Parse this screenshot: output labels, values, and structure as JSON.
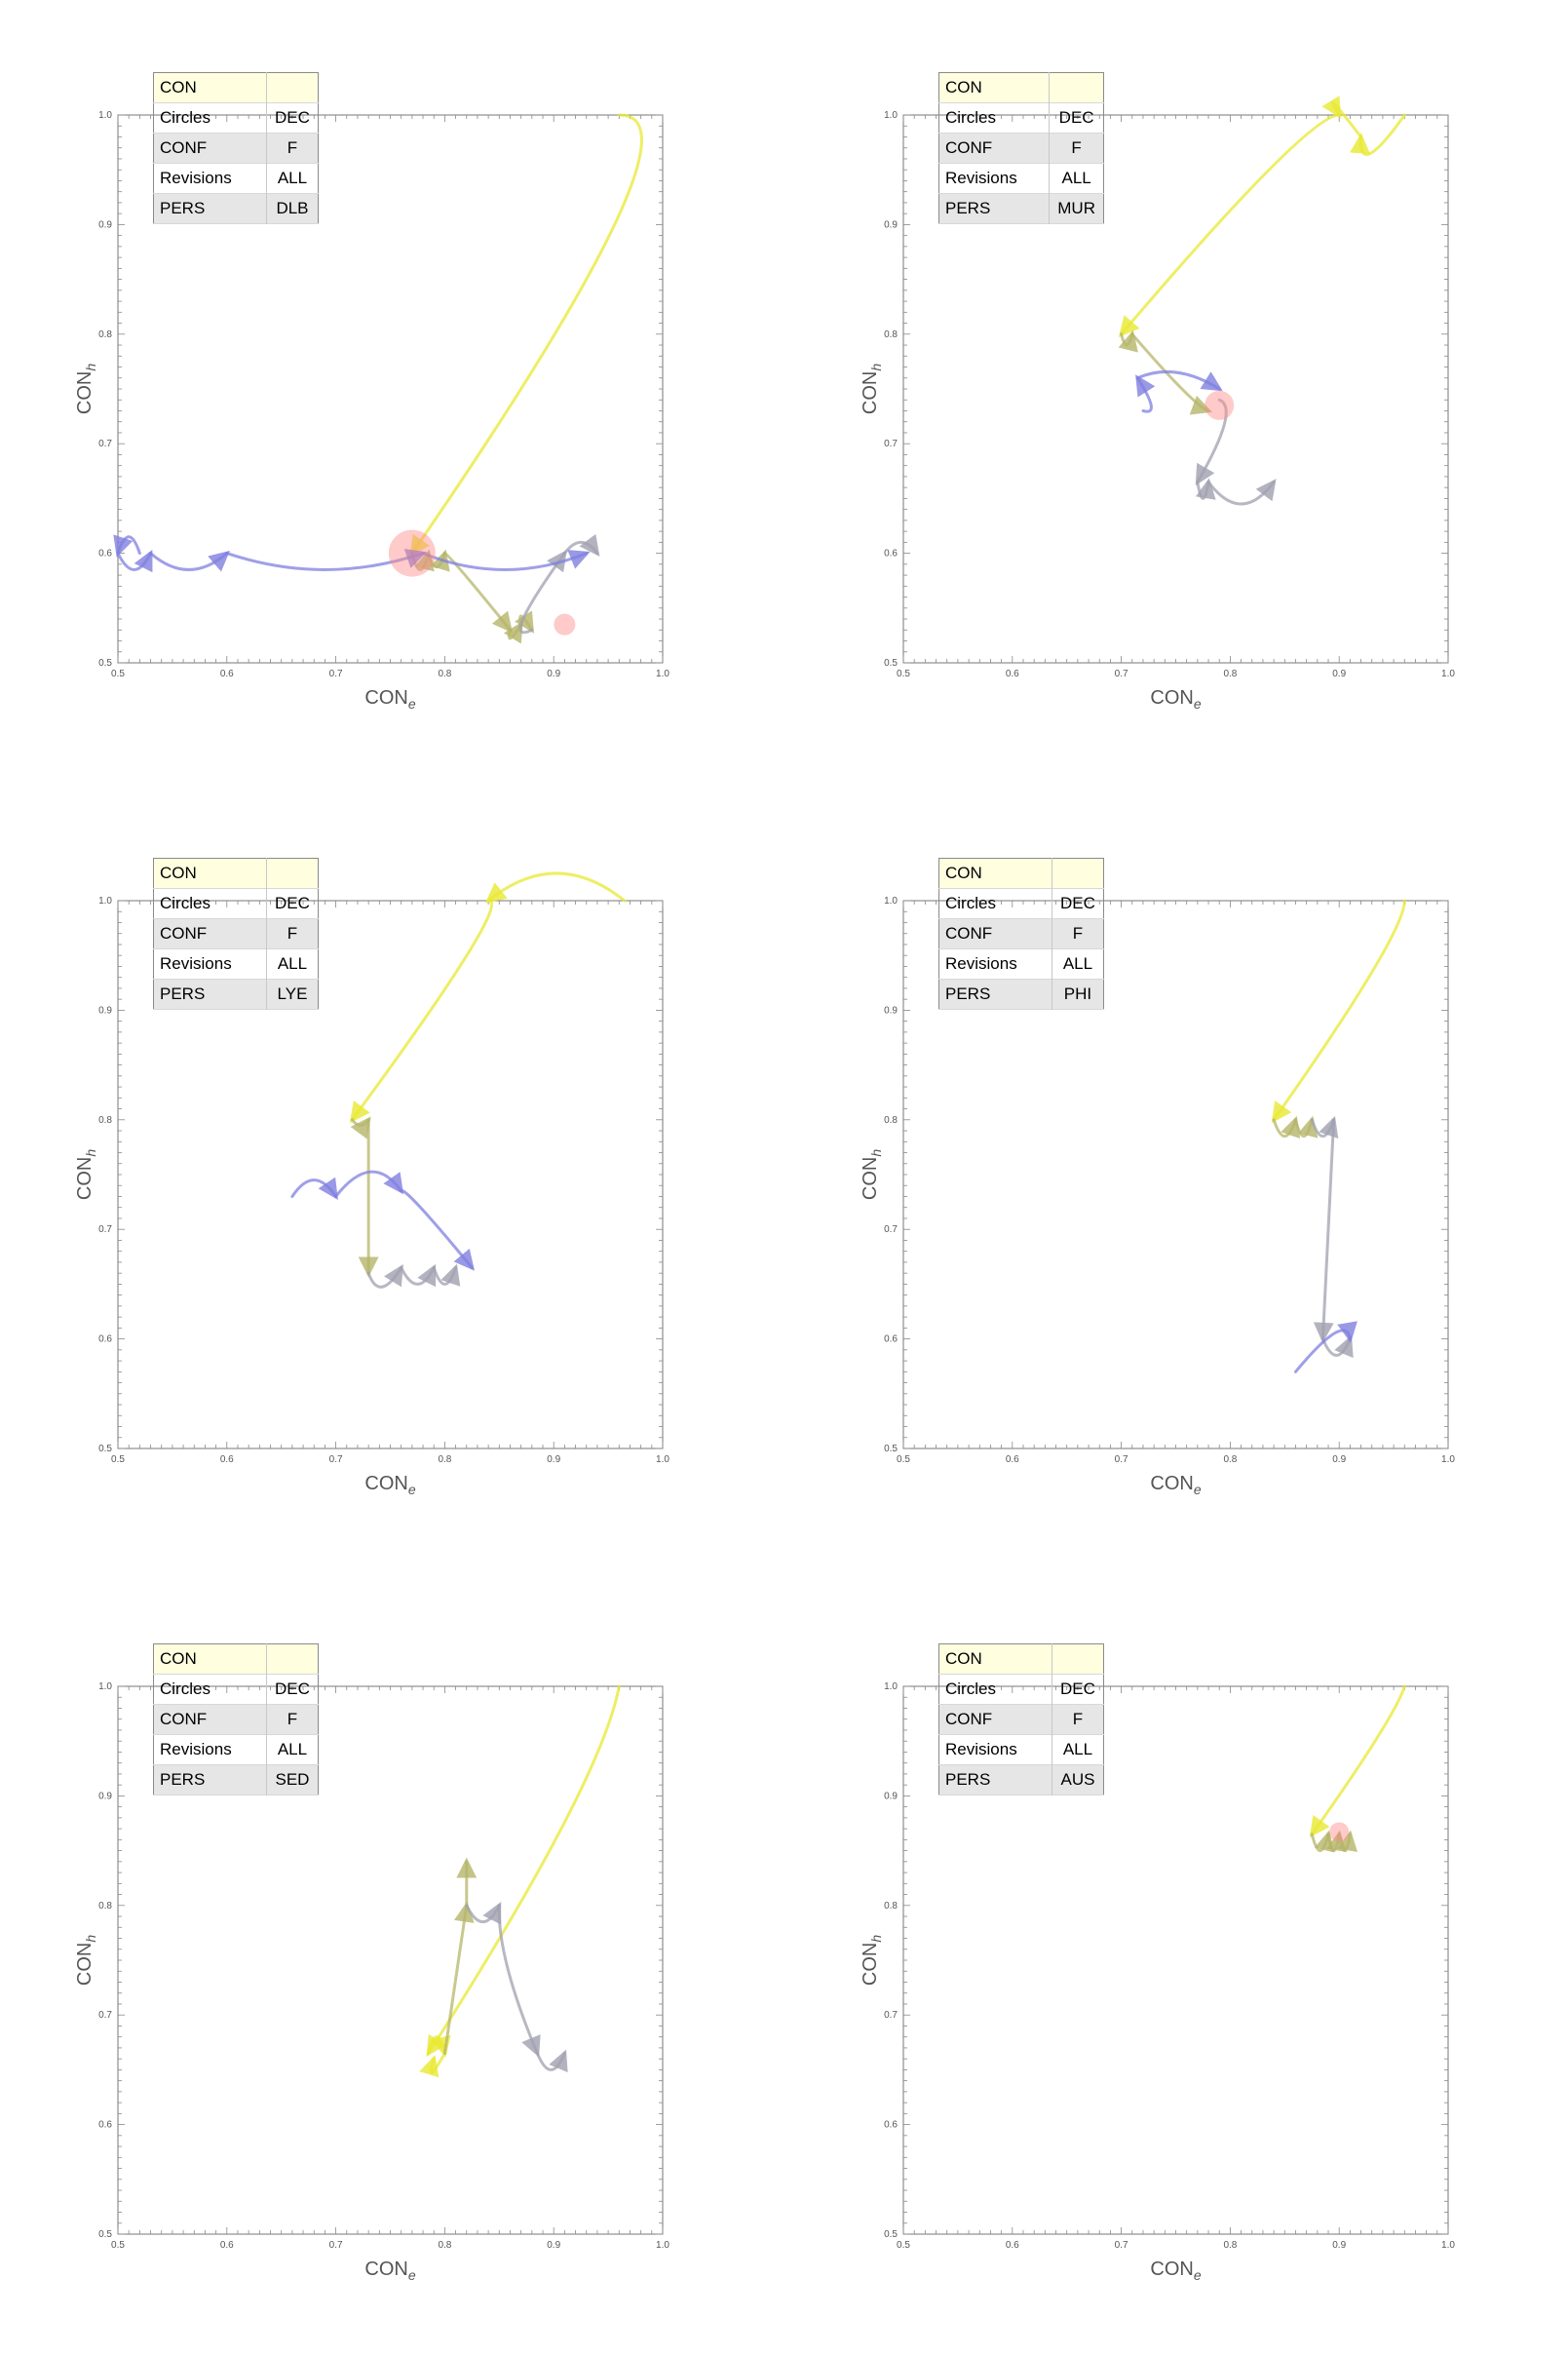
{
  "chart_data": [
    {
      "type": "line",
      "xlabel": "CON",
      "xlabel_sub": "e",
      "ylabel": "CON",
      "ylabel_sub": "h",
      "xlim": [
        0.5,
        1.0
      ],
      "ylim": [
        0.5,
        1.0
      ],
      "xticks": [
        "0.5",
        "0.6",
        "0.7",
        "0.8",
        "0.9",
        "1.0"
      ],
      "yticks": [
        "0.5",
        "0.6",
        "0.7",
        "0.8",
        "0.9",
        "1.0"
      ],
      "grid": false,
      "legend": {
        "title": "CON",
        "rows": [
          [
            "Circles",
            "DEC"
          ],
          [
            "CONF",
            "F"
          ],
          [
            "Revisions",
            "ALL"
          ],
          [
            "PERS",
            "DLB"
          ]
        ]
      },
      "series": [
        {
          "color": "#e8e832",
          "points": [
            [
              0.96,
              1.0
            ],
            [
              0.77,
              0.6
            ]
          ],
          "arcs": [
            0.2
          ]
        },
        {
          "color": "#b5b56a",
          "points": [
            [
              0.77,
              0.6
            ],
            [
              0.785,
              0.6
            ],
            [
              0.8,
              0.6
            ],
            [
              0.86,
              0.53
            ],
            [
              0.87,
              0.535
            ],
            [
              0.88,
              0.53
            ]
          ],
          "arcs": [
            -0.03,
            -0.025,
            0.035,
            -0.02,
            0.02
          ]
        },
        {
          "color": "#a0a0b0",
          "points": [
            [
              0.88,
              0.53
            ],
            [
              0.91,
              0.6
            ],
            [
              0.94,
              0.6
            ]
          ],
          "arcs": [
            -0.05,
            0.02
          ]
        },
        {
          "color": "#7f7fe0",
          "points": [
            [
              0.52,
              0.6
            ],
            [
              0.5,
              0.6
            ],
            [
              0.53,
              0.6
            ],
            [
              0.6,
              0.6
            ],
            [
              0.78,
              0.6
            ],
            [
              0.93,
              0.6
            ]
          ],
          "arcs": [
            0.03,
            -0.03,
            -0.03,
            -0.03,
            -0.03
          ]
        }
      ],
      "circles": [
        {
          "x": 0.77,
          "y": 0.6,
          "r": 24
        },
        {
          "x": 0.91,
          "y": 0.535,
          "r": 11
        }
      ]
    },
    {
      "type": "line",
      "xlabel": "CON",
      "xlabel_sub": "e",
      "ylabel": "CON",
      "ylabel_sub": "h",
      "xlim": [
        0.5,
        1.0
      ],
      "ylim": [
        0.5,
        1.0
      ],
      "xticks": [
        "0.5",
        "0.6",
        "0.7",
        "0.8",
        "0.9",
        "1.0"
      ],
      "yticks": [
        "0.5",
        "0.6",
        "0.7",
        "0.8",
        "0.9",
        "1.0"
      ],
      "grid": false,
      "legend": {
        "title": "CON",
        "rows": [
          [
            "Circles",
            "DEC"
          ],
          [
            "CONF",
            "F"
          ],
          [
            "Revisions",
            "ALL"
          ],
          [
            "PERS",
            "MUR"
          ]
        ]
      },
      "series": [
        {
          "color": "#e8e832",
          "points": [
            [
              0.96,
              1.0
            ],
            [
              0.92,
              0.98
            ],
            [
              0.9,
              1.0
            ],
            [
              0.7,
              0.8
            ]
          ],
          "arcs": [
            -0.05,
            0.04,
            0.1
          ]
        },
        {
          "color": "#b5b56a",
          "points": [
            [
              0.7,
              0.8
            ],
            [
              0.71,
              0.8
            ],
            [
              0.78,
              0.73
            ]
          ],
          "arcs": [
            -0.02,
            -0.03
          ]
        },
        {
          "color": "#a0a0b0",
          "points": [
            [
              0.79,
              0.74
            ],
            [
              0.77,
              0.665
            ],
            [
              0.78,
              0.665
            ],
            [
              0.84,
              0.665
            ]
          ],
          "arcs": [
            0.03,
            -0.03,
            -0.04
          ]
        },
        {
          "color": "#7f7fe0",
          "points": [
            [
              0.72,
              0.73
            ],
            [
              0.715,
              0.76
            ],
            [
              0.79,
              0.75
            ]
          ],
          "arcs": [
            -0.02,
            0.02
          ]
        }
      ],
      "circles": [
        {
          "x": 0.79,
          "y": 0.735,
          "r": 15
        }
      ]
    },
    {
      "type": "line",
      "xlabel": "CON",
      "xlabel_sub": "e",
      "ylabel": "CON",
      "ylabel_sub": "h",
      "xlim": [
        0.5,
        1.0
      ],
      "ylim": [
        0.5,
        1.0
      ],
      "xticks": [
        "0.5",
        "0.6",
        "0.7",
        "0.8",
        "0.9",
        "1.0"
      ],
      "yticks": [
        "0.5",
        "0.6",
        "0.7",
        "0.8",
        "0.9",
        "1.0"
      ],
      "grid": false,
      "legend": {
        "title": "CON",
        "rows": [
          [
            "Circles",
            "DEC"
          ],
          [
            "CONF",
            "F"
          ],
          [
            "Revisions",
            "ALL"
          ],
          [
            "PERS",
            "LYE"
          ]
        ]
      },
      "series": [
        {
          "color": "#e8e832",
          "points": [
            [
              0.965,
              1.0
            ],
            [
              0.84,
              1.0
            ],
            [
              0.715,
              0.8
            ]
          ],
          "arcs": [
            0.05,
            0.1
          ]
        },
        {
          "color": "#b5b56a",
          "points": [
            [
              0.715,
              0.8
            ],
            [
              0.73,
              0.8
            ],
            [
              0.73,
              0.66
            ]
          ],
          "arcs": [
            -0.01,
            0.0
          ]
        },
        {
          "color": "#a0a0b0",
          "points": [
            [
              0.73,
              0.66
            ],
            [
              0.76,
              0.665
            ],
            [
              0.79,
              0.665
            ],
            [
              0.81,
              0.665
            ]
          ],
          "arcs": [
            -0.03,
            -0.03,
            -0.03
          ]
        },
        {
          "color": "#7f7fe0",
          "points": [
            [
              0.66,
              0.73
            ],
            [
              0.7,
              0.73
            ],
            [
              0.76,
              0.735
            ],
            [
              0.825,
              0.665
            ]
          ],
          "arcs": [
            0.03,
            0.04,
            0.04
          ]
        }
      ],
      "circles": []
    },
    {
      "type": "line",
      "xlabel": "CON",
      "xlabel_sub": "e",
      "ylabel": "CON",
      "ylabel_sub": "h",
      "xlim": [
        0.5,
        1.0
      ],
      "ylim": [
        0.5,
        1.0
      ],
      "xticks": [
        "0.5",
        "0.6",
        "0.7",
        "0.8",
        "0.9",
        "1.0"
      ],
      "yticks": [
        "0.5",
        "0.6",
        "0.7",
        "0.8",
        "0.9",
        "1.0"
      ],
      "grid": false,
      "legend": {
        "title": "CON",
        "rows": [
          [
            "Circles",
            "DEC"
          ],
          [
            "CONF",
            "F"
          ],
          [
            "Revisions",
            "ALL"
          ],
          [
            "PERS",
            "PHI"
          ]
        ]
      },
      "series": [
        {
          "color": "#e8e832",
          "points": [
            [
              0.96,
              1.0
            ],
            [
              0.84,
              0.8
            ]
          ],
          "arcs": [
            0.07
          ]
        },
        {
          "color": "#b5b56a",
          "points": [
            [
              0.84,
              0.8
            ],
            [
              0.86,
              0.8
            ],
            [
              0.875,
              0.8
            ]
          ],
          "arcs": [
            -0.03,
            -0.03
          ]
        },
        {
          "color": "#a0a0b0",
          "points": [
            [
              0.875,
              0.8
            ],
            [
              0.895,
              0.8
            ],
            [
              0.885,
              0.6
            ],
            [
              0.91,
              0.6
            ]
          ],
          "arcs": [
            -0.03,
            0.0,
            -0.03
          ]
        },
        {
          "color": "#7f7fe0",
          "points": [
            [
              0.86,
              0.57
            ],
            [
              0.91,
              0.6
            ]
          ],
          "arcs": [
            0.04
          ]
        }
      ],
      "circles": []
    },
    {
      "type": "line",
      "xlabel": "CON",
      "xlabel_sub": "e",
      "ylabel": "CON",
      "ylabel_sub": "h",
      "xlim": [
        0.5,
        1.0
      ],
      "ylim": [
        0.5,
        1.0
      ],
      "xticks": [
        "0.5",
        "0.6",
        "0.7",
        "0.8",
        "0.9",
        "1.0"
      ],
      "yticks": [
        "0.5",
        "0.6",
        "0.7",
        "0.8",
        "0.9",
        "1.0"
      ],
      "grid": false,
      "legend": {
        "title": "CON",
        "rows": [
          [
            "Circles",
            "DEC"
          ],
          [
            "CONF",
            "F"
          ],
          [
            "Revisions",
            "ALL"
          ],
          [
            "PERS",
            "SED"
          ]
        ]
      },
      "series": [
        {
          "color": "#e8e832",
          "points": [
            [
              0.96,
              1.0
            ],
            [
              0.785,
              0.665
            ],
            [
              0.8,
              0.665
            ],
            [
              0.79,
              0.66
            ]
          ],
          "arcs": [
            0.08,
            0.03,
            -0.03
          ]
        },
        {
          "color": "#b5b56a",
          "points": [
            [
              0.8,
              0.665
            ],
            [
              0.82,
              0.8
            ],
            [
              0.82,
              0.84
            ]
          ],
          "arcs": [
            0.0,
            0.0
          ]
        },
        {
          "color": "#a0a0b0",
          "points": [
            [
              0.82,
              0.8
            ],
            [
              0.85,
              0.8
            ],
            [
              0.885,
              0.665
            ],
            [
              0.91,
              0.665
            ]
          ],
          "arcs": [
            -0.03,
            0.02,
            -0.03
          ]
        }
      ],
      "circles": []
    },
    {
      "type": "line",
      "xlabel": "CON",
      "xlabel_sub": "e",
      "ylabel": "CON",
      "ylabel_sub": "h",
      "xlim": [
        0.5,
        1.0
      ],
      "ylim": [
        0.5,
        1.0
      ],
      "xticks": [
        "0.5",
        "0.6",
        "0.7",
        "0.8",
        "0.9",
        "1.0"
      ],
      "yticks": [
        "0.5",
        "0.6",
        "0.7",
        "0.8",
        "0.9",
        "1.0"
      ],
      "grid": false,
      "legend": {
        "title": "CON",
        "rows": [
          [
            "Circles",
            "DEC"
          ],
          [
            "CONF",
            "F"
          ],
          [
            "Revisions",
            "ALL"
          ],
          [
            "PERS",
            "AUS"
          ]
        ]
      },
      "series": [
        {
          "color": "#e8e832",
          "points": [
            [
              0.96,
              1.0
            ],
            [
              0.875,
              0.865
            ]
          ],
          "arcs": [
            0.04
          ]
        },
        {
          "color": "#b5b56a",
          "points": [
            [
              0.875,
              0.865
            ],
            [
              0.89,
              0.865
            ],
            [
              0.9,
              0.865
            ],
            [
              0.91,
              0.865
            ]
          ],
          "arcs": [
            -0.03,
            -0.03,
            -0.03
          ]
        }
      ],
      "circles": [
        {
          "x": 0.9,
          "y": 0.867,
          "r": 10
        }
      ]
    }
  ]
}
